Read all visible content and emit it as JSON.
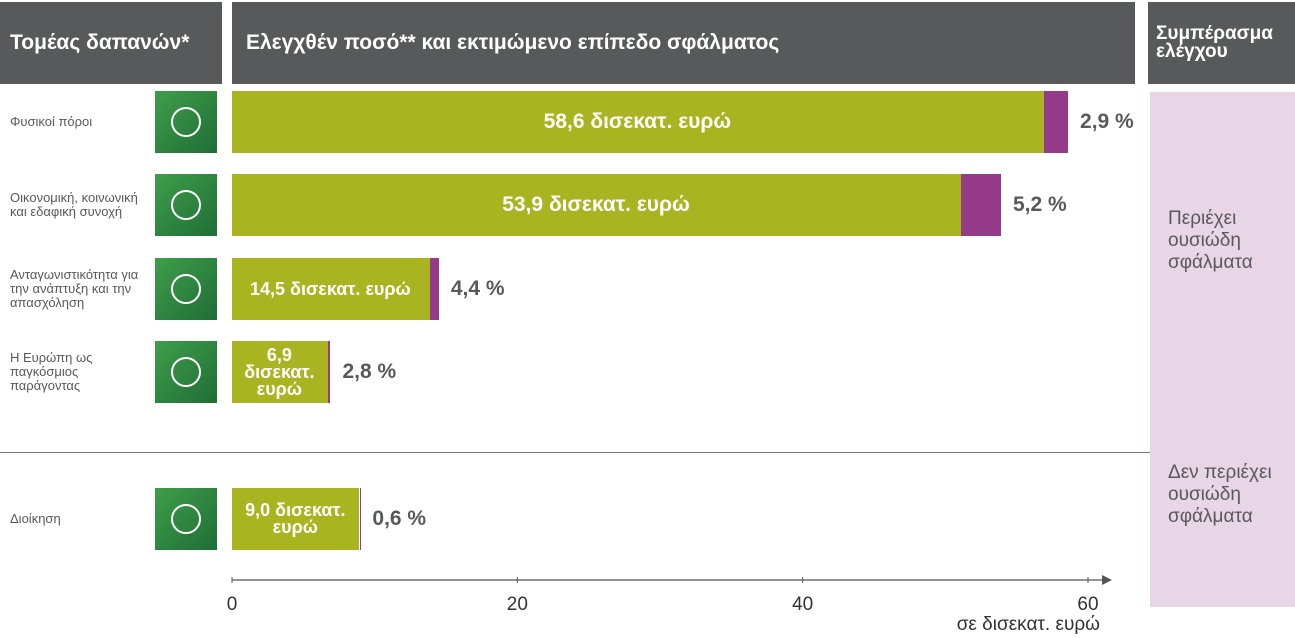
{
  "chart_data": {
    "type": "bar",
    "headers": [
      "Τομέας δαπανών*",
      "Ελεγχθέν ποσό** και εκτιμώμενο επίπεδο σφάλματος",
      "Συμπέρασμα ελέγχου"
    ],
    "categories": [
      "Φυσικοί πόροι",
      "Οικονομική, κοινωνική και εδαφική συνοχή",
      "Ανταγωνιστικότητα για την ανάπτυξη και την απασχόληση",
      "Η Ευρώπη ως παγκόσμιος παράγοντας",
      "Διοίκηση"
    ],
    "values": [
      58.6,
      53.9,
      14.5,
      6.9,
      9.0
    ],
    "value_labels": [
      "58,6 δισεκατ. ευρώ",
      "53,9 δισεκατ. ευρώ",
      "14,5 δισεκατ. ευρώ",
      "6,9 δισεκατ. ευρώ",
      "9,0 δισεκατ. ευρώ"
    ],
    "error_rates": [
      2.9,
      5.2,
      4.4,
      2.8,
      0.6
    ],
    "error_labels": [
      "2,9 %",
      "5,2 %",
      "4,4 %",
      "2,8 %",
      "0,6 %"
    ],
    "color": "#a8b420",
    "error_color": "#963a8a",
    "conclusions": [
      "Περιέχει ουσιώδη σφάλματα",
      "Δεν περιέχει ουσιώδη σφάλματα"
    ],
    "xlabel": "σε δισεκατ. ευρώ",
    "xlim": [
      0,
      60
    ],
    "xticks": [
      0,
      20,
      40,
      60
    ]
  }
}
